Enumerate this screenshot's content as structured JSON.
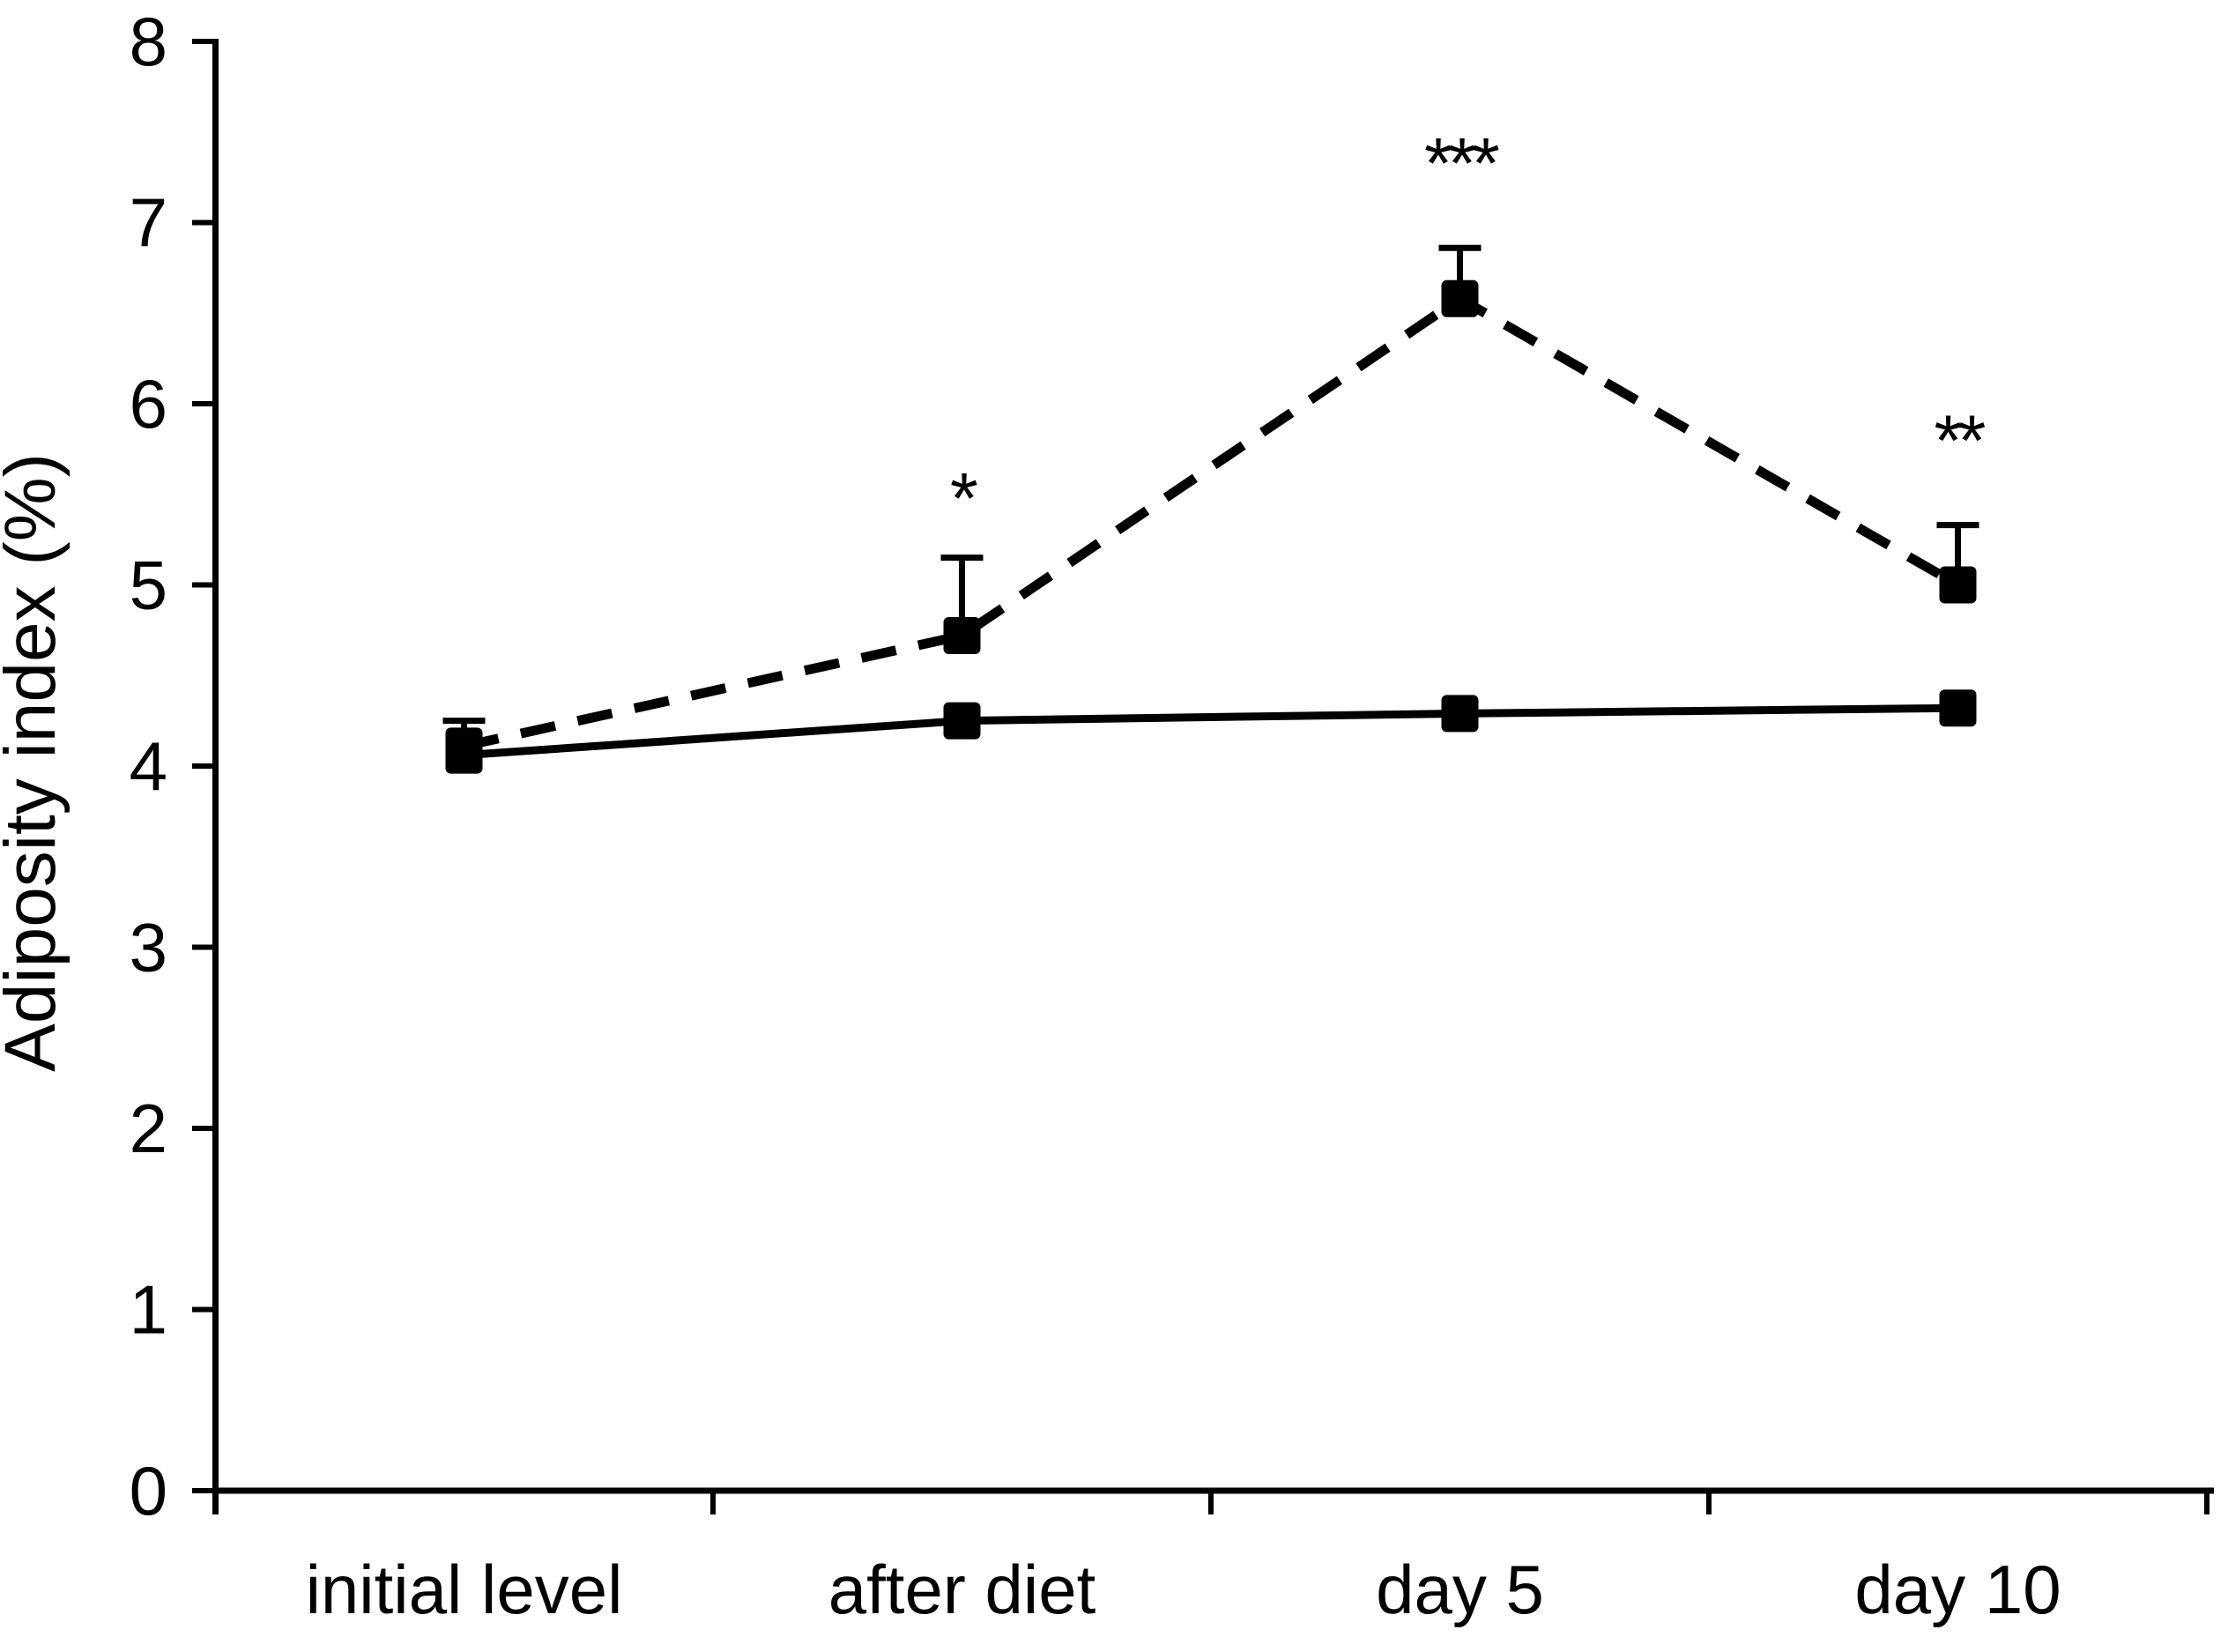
{
  "figure": {
    "background_color": "#ffffff",
    "ink_color": "#000000"
  },
  "chart_data": {
    "type": "line",
    "categories": [
      "initial level",
      "after diet",
      "day 5",
      "day 10"
    ],
    "series": [
      {
        "name": "dashed series",
        "line_style": "dashed",
        "marker": "filled-square",
        "color": "#000000",
        "values": [
          4.11,
          4.72,
          6.58,
          5.0
        ],
        "errors_plus": [
          0.14,
          0.43,
          0.28,
          0.33
        ]
      },
      {
        "name": "solid series",
        "line_style": "solid",
        "marker": "filled-square",
        "color": "#000000",
        "values": [
          4.06,
          4.25,
          4.29,
          4.32
        ],
        "errors_plus": [
          0,
          0,
          0,
          0
        ]
      }
    ],
    "annotations": [
      {
        "text": "*",
        "category": "after diet",
        "category_index": 1,
        "y_value": 5.54
      },
      {
        "text": "***",
        "category": "day 5",
        "category_index": 2,
        "y_value": 7.39
      },
      {
        "text": "**",
        "category": "day 10",
        "category_index": 3,
        "y_value": 5.86
      }
    ],
    "title": "",
    "xlabel": "",
    "ylabel": "Adiposity index (%)",
    "ylim": [
      0,
      8
    ],
    "yticks": [
      0,
      1,
      2,
      3,
      4,
      5,
      6,
      7,
      8
    ],
    "grid": false,
    "legend": "none"
  }
}
